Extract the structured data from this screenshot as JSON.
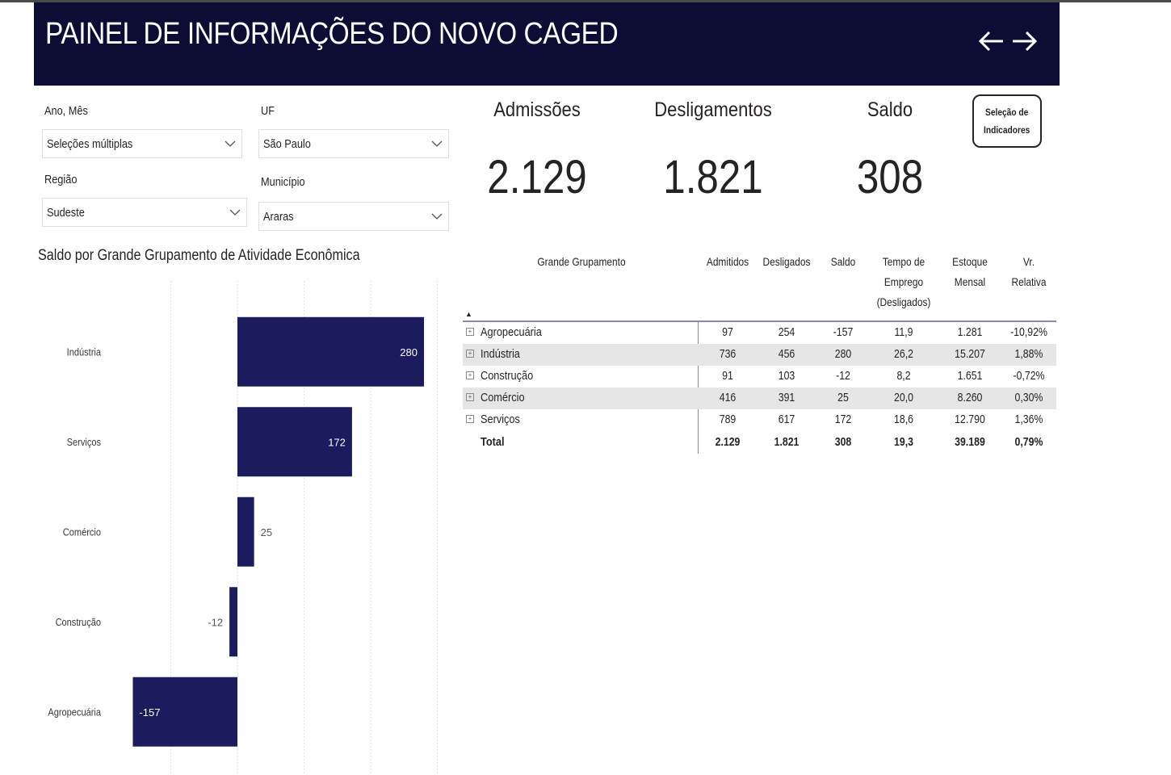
{
  "header": {
    "title": "PAINEL DE INFORMAÇÕES DO NOVO CAGED"
  },
  "filters": {
    "ano_mes": {
      "label": "Ano, Mês",
      "value": "Seleções múltiplas"
    },
    "uf": {
      "label": "UF",
      "value": "São Paulo"
    },
    "regiao": {
      "label": "Região",
      "value": "Sudeste"
    },
    "municipio": {
      "label": "Município",
      "value": "Araras"
    }
  },
  "kpis": {
    "admissoes": {
      "label": "Admissões",
      "value": "2.129"
    },
    "desligamentos": {
      "label": "Desligamentos",
      "value": "1.821"
    },
    "saldo": {
      "label": "Saldo",
      "value": "308"
    }
  },
  "selection_button": {
    "line1": "Seleção de",
    "line2": "Indicadores"
  },
  "colors": {
    "header_bg": "#0c0c35",
    "bar": "#1b1b5e",
    "row_shade": "#e6e6e6"
  },
  "chart_data": {
    "type": "bar",
    "orientation": "horizontal",
    "title": "Saldo por Grande Grupamento de Atividade Econômica",
    "categories": [
      "Indústria",
      "Serviços",
      "Comércio",
      "Construção",
      "Agropecuária"
    ],
    "values": [
      280,
      172,
      25,
      -12,
      -157
    ],
    "data_labels": [
      "280",
      "172",
      "25",
      "-12",
      "-157"
    ],
    "xlim": [
      -300,
      300
    ],
    "grid": true
  },
  "table": {
    "headers": {
      "group": "Grande Grupamento",
      "admitidos": "Admitidos",
      "desligados": "Desligados",
      "saldo": "Saldo",
      "tempo_1": "Tempo de",
      "tempo_2": "Emprego",
      "tempo_3": "(Desligados)",
      "estoque_1": "Estoque",
      "estoque_2": "Mensal",
      "vr_1": "Vr.",
      "vr_2": "Relativa"
    },
    "rows": [
      {
        "name": "Agropecuária",
        "admitidos": "97",
        "desligados": "254",
        "saldo": "-157",
        "tempo": "11,9",
        "estoque": "1.281",
        "vr": "-10,92%"
      },
      {
        "name": "Indústria",
        "admitidos": "736",
        "desligados": "456",
        "saldo": "280",
        "tempo": "26,2",
        "estoque": "15.207",
        "vr": "1,88%"
      },
      {
        "name": "Construção",
        "admitidos": "91",
        "desligados": "103",
        "saldo": "-12",
        "tempo": "8,2",
        "estoque": "1.651",
        "vr": "-0,72%"
      },
      {
        "name": "Comércio",
        "admitidos": "416",
        "desligados": "391",
        "saldo": "25",
        "tempo": "20,0",
        "estoque": "8.260",
        "vr": "0,30%"
      },
      {
        "name": "Serviços",
        "admitidos": "789",
        "desligados": "617",
        "saldo": "172",
        "tempo": "18,6",
        "estoque": "12.790",
        "vr": "1,36%"
      }
    ],
    "total": {
      "name": "Total",
      "admitidos": "2.129",
      "desligados": "1.821",
      "saldo": "308",
      "tempo": "19,3",
      "estoque": "39.189",
      "vr": "0,79%"
    }
  }
}
